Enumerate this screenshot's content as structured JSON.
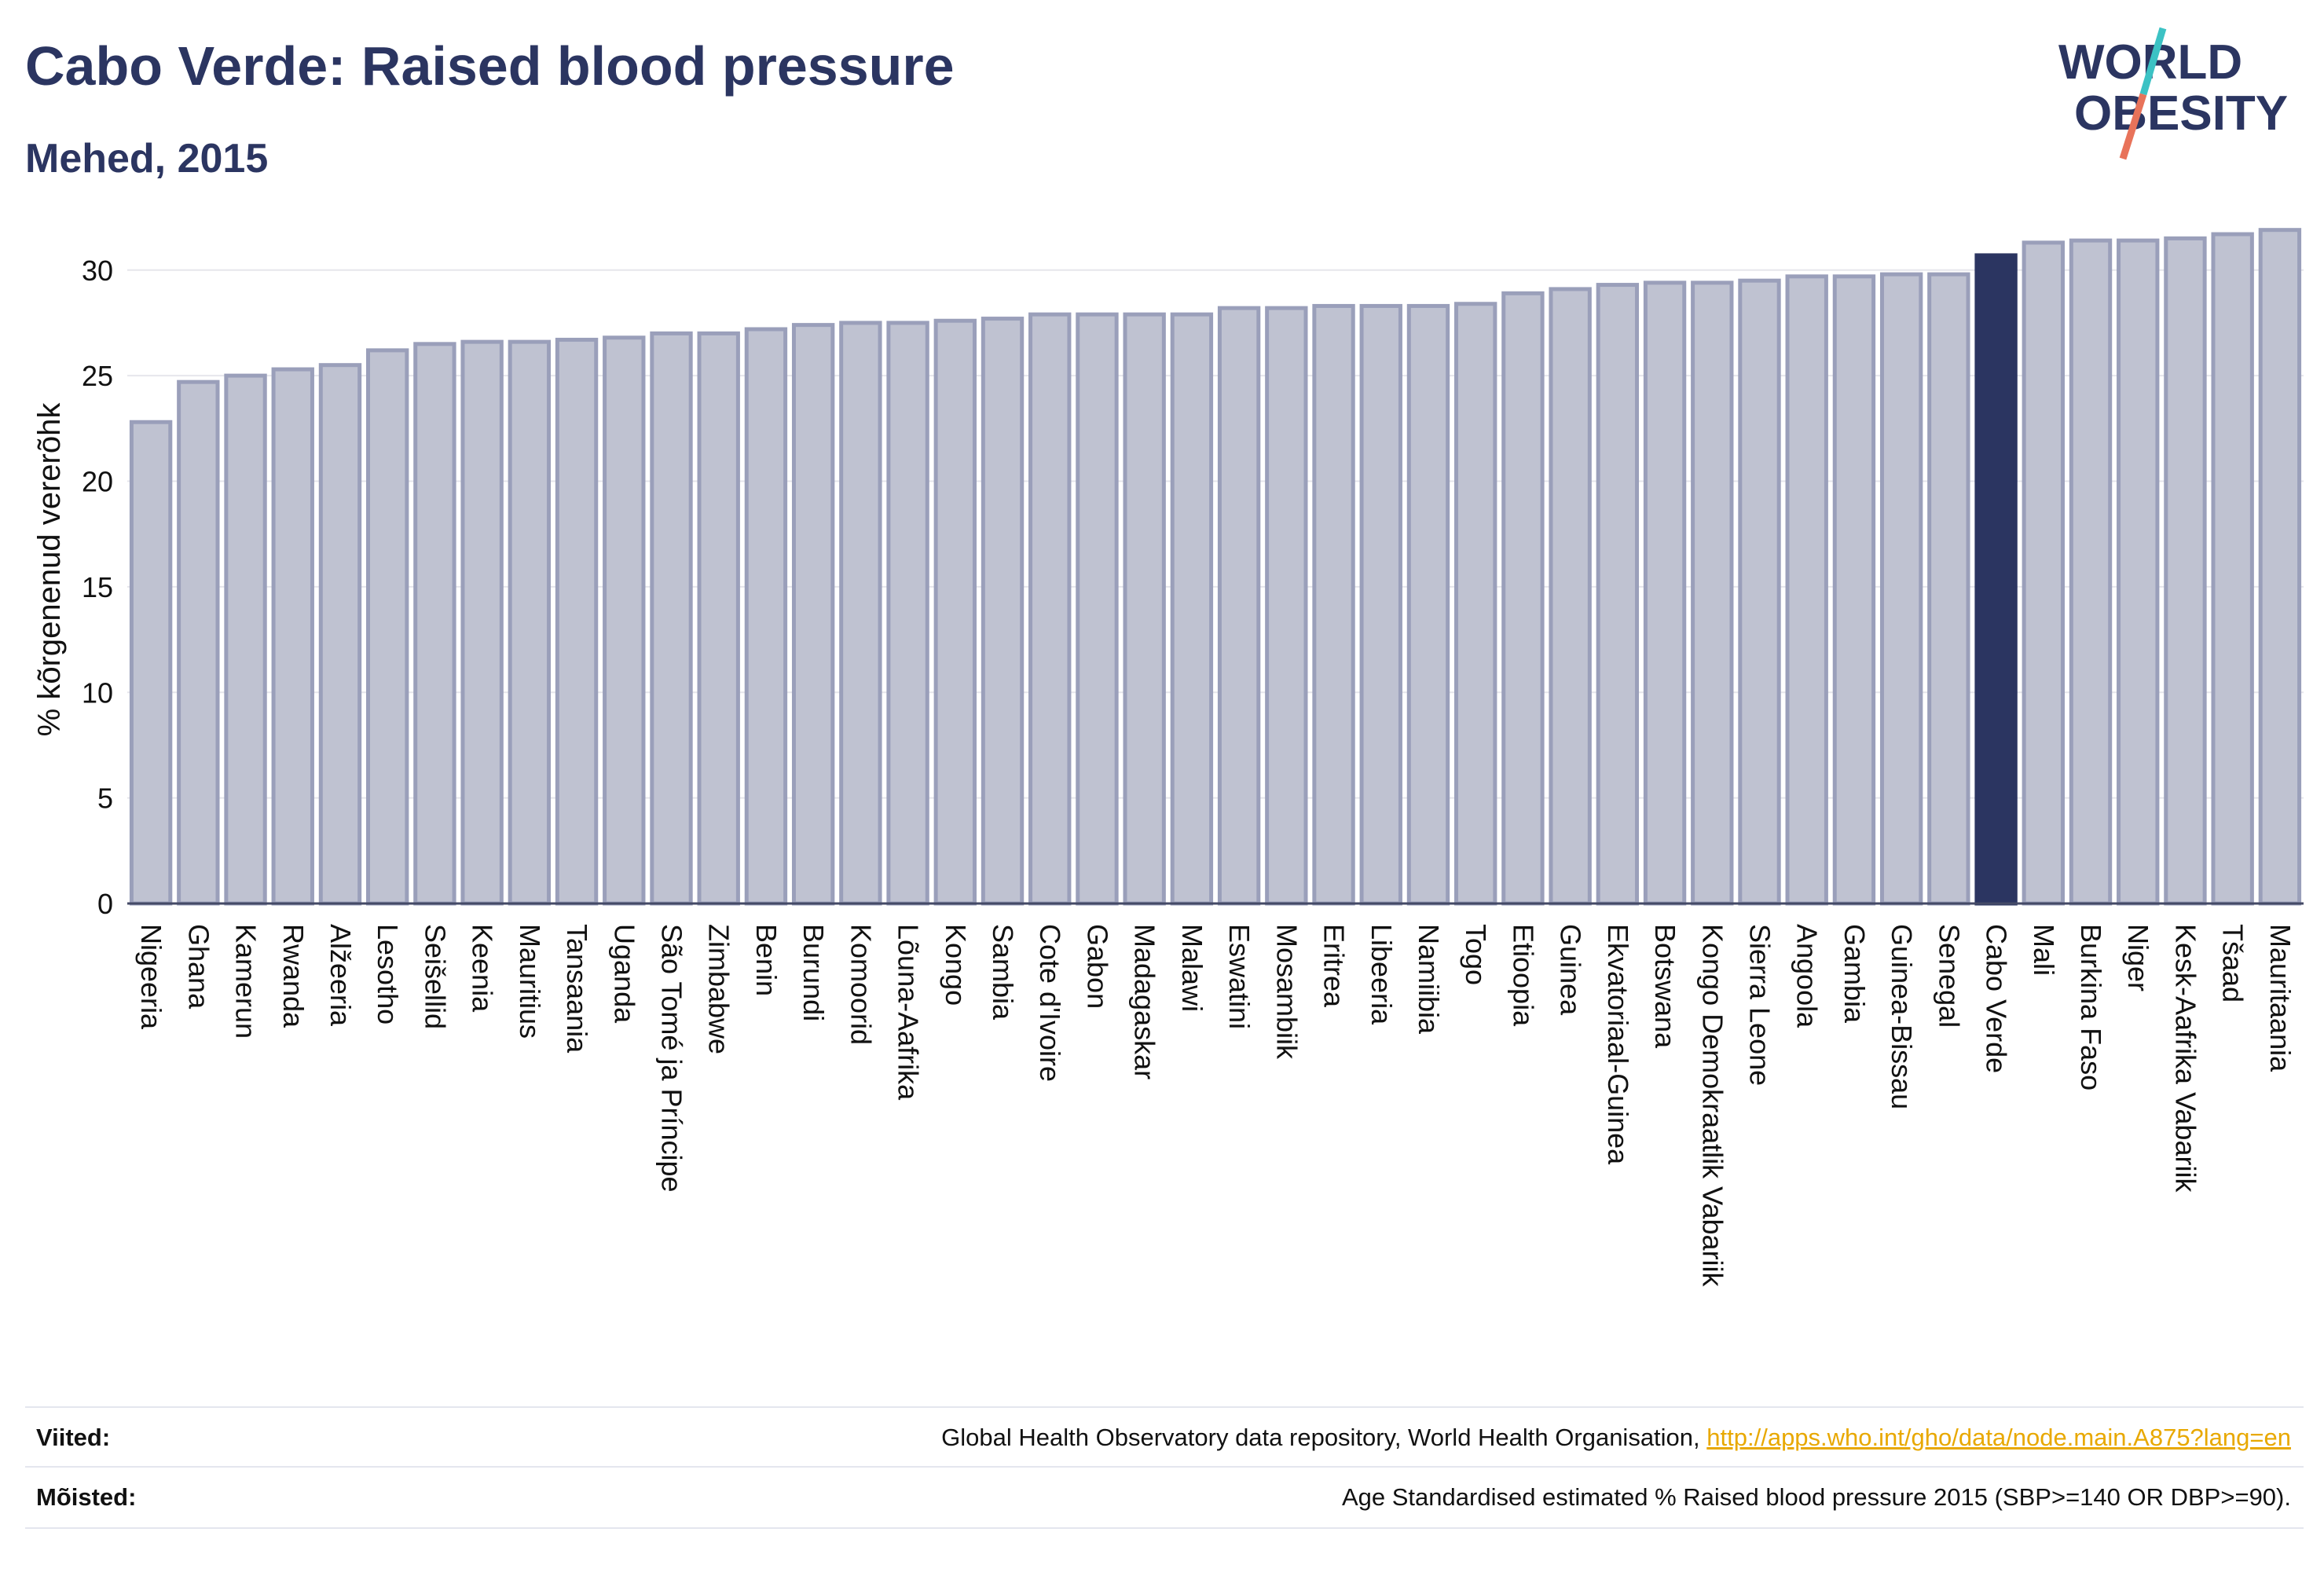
{
  "header": {
    "title": "Cabo Verde: Raised blood pressure",
    "subtitle": "Mehed, 2015"
  },
  "logo": {
    "line1": "WORLD",
    "line2": "OBESITY"
  },
  "colors": {
    "highlight": "#2b3561",
    "bar_fill": "#bfc2d1",
    "bar_stroke": "#9a9fba",
    "grid": "#e6e6ec",
    "logo_teal": "#3cc2c4",
    "logo_coral": "#e8735a"
  },
  "chart_data": {
    "type": "bar",
    "ylabel": "% kõrgenenud vererõhk",
    "ylim": [
      0,
      32
    ],
    "yticks": [
      0,
      5,
      10,
      15,
      20,
      25,
      30
    ],
    "grid": true,
    "highlight": "Cabo Verde",
    "categories": [
      "Nigeeria",
      "Ghana",
      "Kamerun",
      "Rwanda",
      "Alžeeria",
      "Lesotho",
      "Seišellid",
      "Keenia",
      "Mauritius",
      "Tansaania",
      "Uganda",
      "São Tomé ja Príncipe",
      "Zimbabwe",
      "Benin",
      "Burundi",
      "Komoorid",
      "Lõuna-Aafrika",
      "Kongo",
      "Sambia",
      "Cote d'Ivoire",
      "Gabon",
      "Madagaskar",
      "Malawi",
      "Eswatini",
      "Mosambiik",
      "Eritrea",
      "Libeeria",
      "Namiibia",
      "Togo",
      "Etioopia",
      "Guinea",
      "Ekvatoriaal-Guinea",
      "Botswana",
      "Kongo Demokraatlik Vabariik",
      "Sierra Leone",
      "Angoola",
      "Gambia",
      "Guinea-Bissau",
      "Senegal",
      "Cabo Verde",
      "Mali",
      "Burkina Faso",
      "Niger",
      "Kesk-Aafrika Vabariik",
      "Tšaad",
      "Mauritaania"
    ],
    "values": [
      22.8,
      24.7,
      25.0,
      25.3,
      25.5,
      26.2,
      26.5,
      26.6,
      26.6,
      26.7,
      26.8,
      27.0,
      27.0,
      27.2,
      27.4,
      27.5,
      27.5,
      27.6,
      27.7,
      27.9,
      27.9,
      27.9,
      27.9,
      28.2,
      28.2,
      28.3,
      28.3,
      28.3,
      28.4,
      28.9,
      29.1,
      29.3,
      29.4,
      29.4,
      29.5,
      29.7,
      29.7,
      29.8,
      29.8,
      30.7,
      31.3,
      31.4,
      31.4,
      31.5,
      31.7,
      31.9
    ]
  },
  "footer": {
    "sources_label": "Viited:",
    "sources_text": "Global Health Observatory data repository, World Health Organisation,",
    "sources_link": "http://apps.who.int/gho/data/node.main.A875?lang=en",
    "definitions_label": "Mõisted:",
    "definitions_text": "Age Standardised estimated % Raised blood pressure 2015 (SBP>=140 OR DBP>=90)."
  }
}
